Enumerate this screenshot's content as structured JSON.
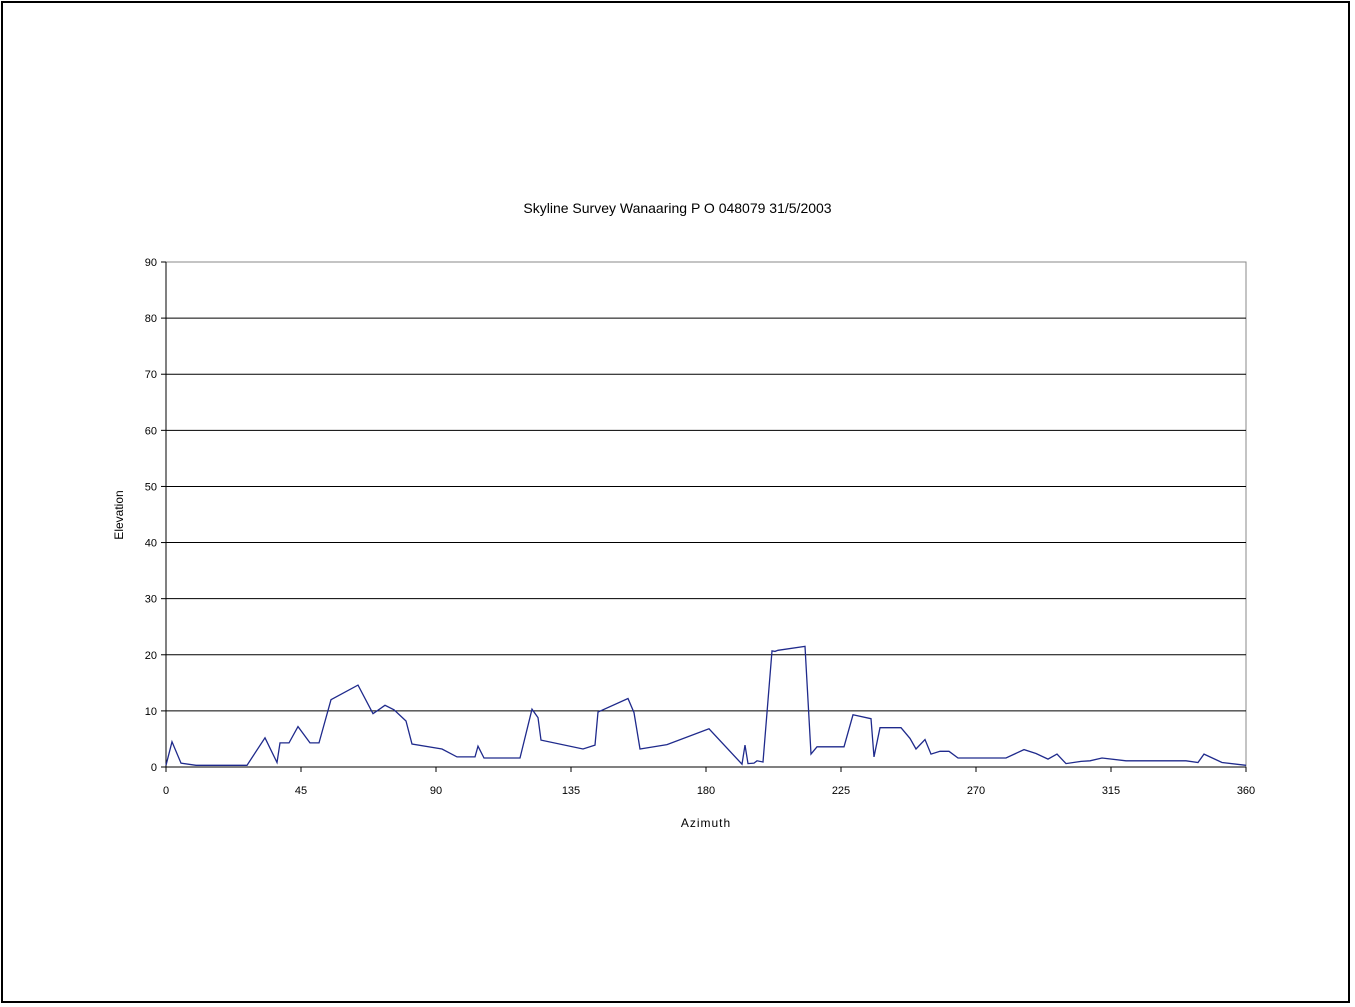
{
  "chart_data": {
    "type": "line",
    "title": "Skyline Survey Wanaaring P O 048079  31/5/2003",
    "xlabel": "Azimuth",
    "ylabel": "Elevation",
    "xlim": [
      0,
      360
    ],
    "ylim": [
      0,
      90
    ],
    "xticks": [
      0,
      45,
      90,
      135,
      180,
      225,
      270,
      315,
      360
    ],
    "yticks": [
      0,
      10,
      20,
      30,
      40,
      50,
      60,
      70,
      80,
      90
    ],
    "grid": "horizontal",
    "legend": "none",
    "series": [
      {
        "color": "#1f2a8c",
        "x": [
          0,
          2,
          5,
          10,
          27,
          33,
          37,
          38,
          41,
          44,
          48,
          51,
          55,
          64,
          69,
          73,
          76,
          80,
          82,
          92,
          97,
          103,
          104,
          106,
          118,
          122,
          124,
          125,
          139,
          143,
          144,
          154,
          156,
          158,
          167,
          181,
          192,
          193,
          194,
          196,
          197,
          199,
          202,
          203,
          204,
          213,
          215,
          217,
          220,
          226,
          229,
          235,
          236,
          238,
          245,
          248,
          250,
          253,
          255,
          258,
          261,
          264,
          280,
          286,
          290,
          294,
          297,
          300,
          305,
          308,
          312,
          320,
          340,
          344,
          346,
          352,
          360
        ],
        "y": [
          0.3,
          4.5,
          0.7,
          0.3,
          0.3,
          5.2,
          0.8,
          4.3,
          4.3,
          7.2,
          4.3,
          4.3,
          12,
          14.6,
          9.5,
          11,
          10.2,
          8.2,
          4.1,
          3.2,
          1.8,
          1.8,
          3.7,
          1.6,
          1.6,
          10.3,
          8.8,
          4.8,
          3.2,
          3.9,
          9.8,
          12.2,
          9.7,
          3.2,
          4,
          6.8,
          0.5,
          3.9,
          0.6,
          0.7,
          1.1,
          0.9,
          20.7,
          20.6,
          20.8,
          21.5,
          2.3,
          3.6,
          3.6,
          3.6,
          9.3,
          8.6,
          1.8,
          7,
          7,
          5.1,
          3.2,
          4.9,
          2.3,
          2.8,
          2.8,
          1.6,
          1.6,
          3.1,
          2.4,
          1.4,
          2.3,
          0.6,
          1,
          1.1,
          1.6,
          1.1,
          1.1,
          0.8,
          2.3,
          0.8,
          0.3
        ]
      }
    ]
  }
}
